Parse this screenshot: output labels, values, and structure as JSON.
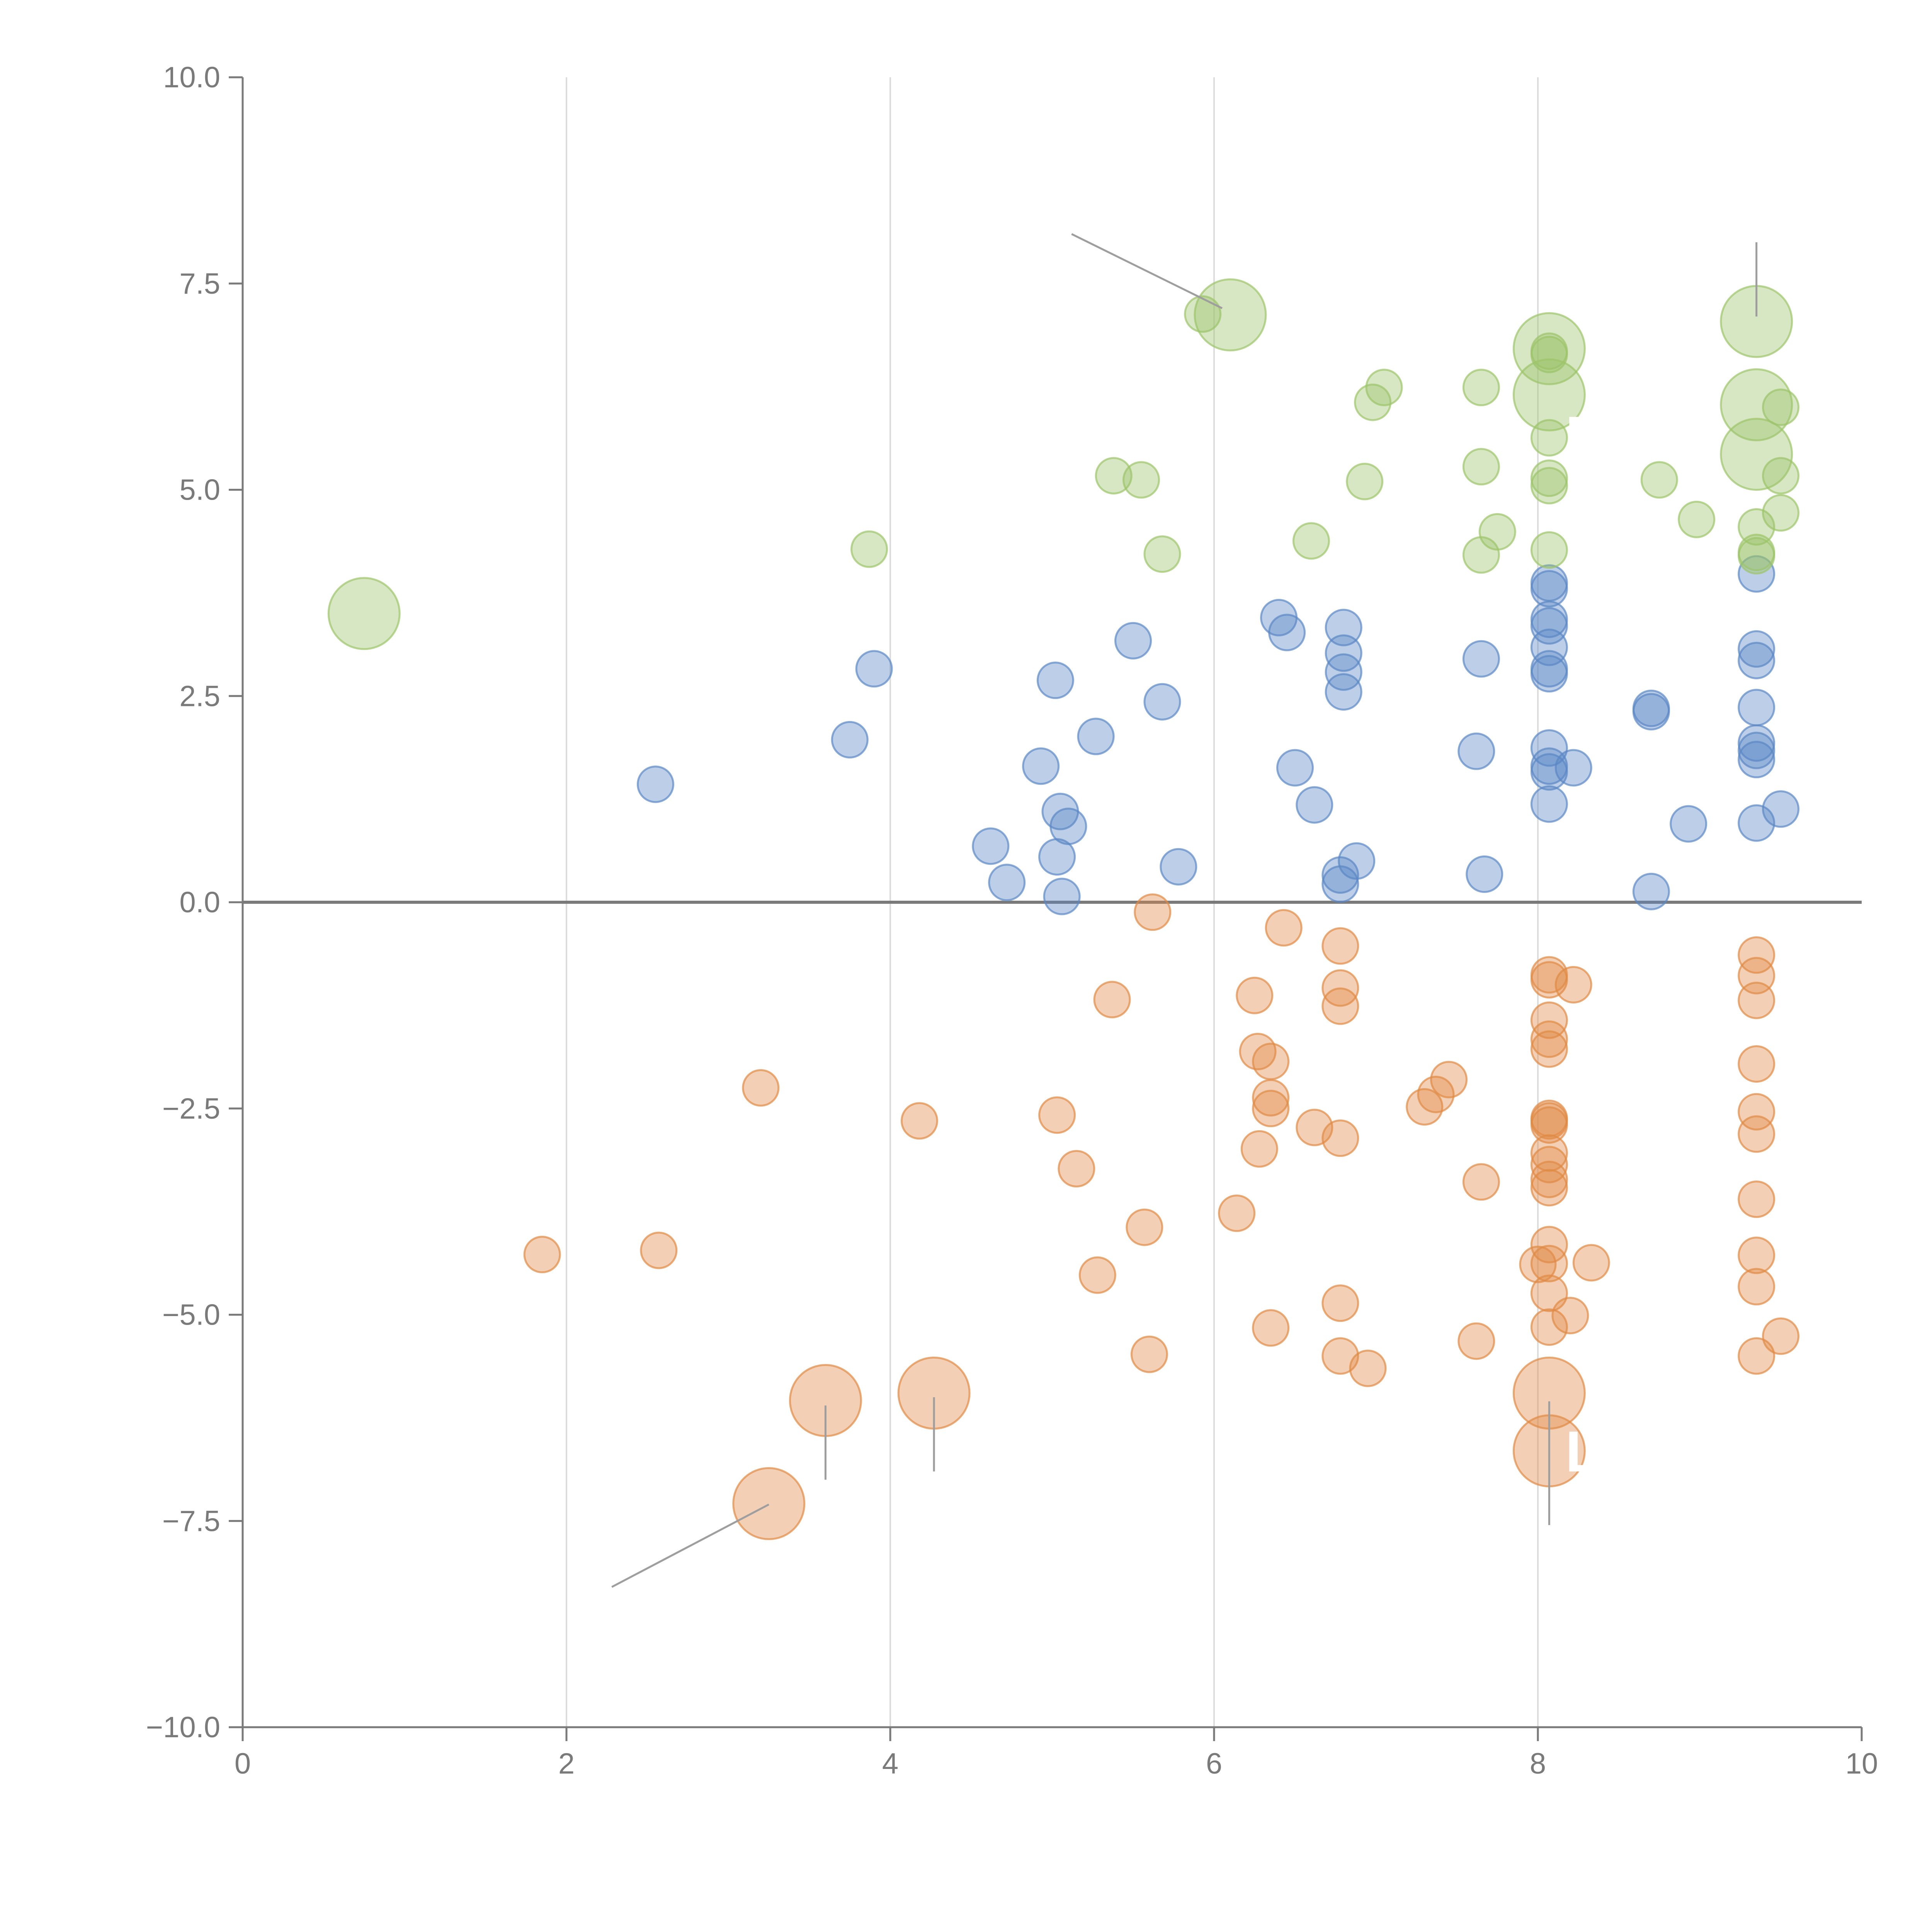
{
  "chart_data": {
    "type": "scatter",
    "title": "",
    "xlabel": "",
    "ylabel": "",
    "xlim": [
      0,
      10
    ],
    "ylim": [
      -10,
      10
    ],
    "x_ticks": [
      0,
      2,
      4,
      6,
      8,
      10
    ],
    "x_tick_labels": [
      "0",
      "2",
      "4",
      "6",
      "8",
      "10"
    ],
    "y_ticks": [
      -10,
      -7.5,
      -5,
      -2.5,
      0,
      2.5,
      5,
      7.5,
      10
    ],
    "y_tick_labels": [
      "−10.0",
      "−7.5",
      "−5.0",
      "−2.5",
      "0.0",
      "2.5",
      "5.0",
      "7.5",
      "10.0"
    ],
    "grid": "vertical",
    "zero_line": 0,
    "colors": {
      "blue": "#5b87c5",
      "orange": "#e08a45",
      "green": "#9cc46a",
      "leader": "#9e9e9e",
      "axis": "#7a7a7a",
      "grid": "#dcdcdc"
    },
    "series": [
      {
        "name": "blue",
        "color": "#5b87c5",
        "points": [
          [
            2.55,
            1.43,
            1
          ],
          [
            3.75,
            1.97,
            1
          ],
          [
            3.9,
            2.83,
            1
          ],
          [
            4.62,
            0.68,
            1
          ],
          [
            4.72,
            0.24,
            1
          ],
          [
            4.93,
            1.65,
            1
          ],
          [
            5.02,
            2.69,
            1
          ],
          [
            5.03,
            0.55,
            1
          ],
          [
            5.05,
            1.1,
            1
          ],
          [
            5.06,
            0.07,
            1
          ],
          [
            5.1,
            0.92,
            1
          ],
          [
            5.27,
            2.01,
            1
          ],
          [
            5.5,
            3.17,
            1
          ],
          [
            5.68,
            2.43,
            1
          ],
          [
            5.78,
            0.43,
            1
          ],
          [
            6.4,
            3.45,
            1
          ],
          [
            6.45,
            3.27,
            1
          ],
          [
            6.5,
            1.63,
            1
          ],
          [
            6.62,
            1.18,
            1
          ],
          [
            6.78,
            0.33,
            1
          ],
          [
            6.78,
            0.22,
            1
          ],
          [
            6.8,
            3.33,
            1
          ],
          [
            6.8,
            3.02,
            1
          ],
          [
            6.8,
            2.79,
            1
          ],
          [
            6.8,
            2.55,
            1
          ],
          [
            6.88,
            0.5,
            1
          ],
          [
            7.62,
            1.83,
            1
          ],
          [
            7.65,
            2.95,
            1
          ],
          [
            7.67,
            0.34,
            1
          ],
          [
            8.07,
            3.87,
            1
          ],
          [
            8.07,
            3.8,
            1
          ],
          [
            8.07,
            3.43,
            1
          ],
          [
            8.07,
            3.35,
            1
          ],
          [
            8.07,
            3.09,
            1
          ],
          [
            8.07,
            2.83,
            1
          ],
          [
            8.07,
            2.77,
            1
          ],
          [
            8.07,
            1.87,
            1
          ],
          [
            8.07,
            1.65,
            1
          ],
          [
            8.07,
            1.58,
            1
          ],
          [
            8.07,
            1.19,
            1
          ],
          [
            8.22,
            1.63,
            1
          ],
          [
            8.7,
            2.35,
            1
          ],
          [
            8.7,
            2.31,
            1
          ],
          [
            8.7,
            0.13,
            1
          ],
          [
            8.93,
            0.95,
            1
          ],
          [
            9.35,
            3.98,
            1
          ],
          [
            9.35,
            3.07,
            1
          ],
          [
            9.35,
            2.93,
            1
          ],
          [
            9.35,
            2.36,
            1
          ],
          [
            9.35,
            1.93,
            1
          ],
          [
            9.35,
            1.84,
            1
          ],
          [
            9.35,
            1.73,
            1
          ],
          [
            9.35,
            0.96,
            1
          ],
          [
            9.5,
            1.13,
            1
          ]
        ]
      },
      {
        "name": "orange",
        "color": "#e08a45",
        "points": [
          [
            1.85,
            -4.27,
            1
          ],
          [
            2.57,
            -4.22,
            1
          ],
          [
            3.2,
            -2.25,
            1
          ],
          [
            4.18,
            -2.65,
            1
          ],
          [
            5.03,
            -2.58,
            1
          ],
          [
            5.15,
            -3.23,
            1
          ],
          [
            5.28,
            -4.52,
            1
          ],
          [
            5.37,
            -1.18,
            1
          ],
          [
            5.57,
            -3.94,
            1
          ],
          [
            5.6,
            -5.48,
            1
          ],
          [
            5.62,
            -0.12,
            1
          ],
          [
            6.14,
            -3.77,
            1
          ],
          [
            6.25,
            -1.13,
            1
          ],
          [
            6.27,
            -1.81,
            1
          ],
          [
            6.28,
            -2.99,
            1
          ],
          [
            6.35,
            -1.93,
            1
          ],
          [
            6.35,
            -2.37,
            1
          ],
          [
            6.35,
            -2.5,
            1
          ],
          [
            6.35,
            -5.16,
            1
          ],
          [
            6.43,
            -0.31,
            1
          ],
          [
            6.62,
            -2.73,
            1
          ],
          [
            6.78,
            -0.53,
            1
          ],
          [
            6.78,
            -1.04,
            1
          ],
          [
            6.78,
            -1.26,
            1
          ],
          [
            6.78,
            -2.86,
            1
          ],
          [
            6.78,
            -4.86,
            1
          ],
          [
            6.78,
            -5.5,
            1
          ],
          [
            6.95,
            -5.65,
            1
          ],
          [
            7.3,
            -2.48,
            1
          ],
          [
            7.37,
            -2.33,
            1
          ],
          [
            7.45,
            -2.15,
            1
          ],
          [
            7.62,
            -5.32,
            1
          ],
          [
            7.65,
            -3.39,
            1
          ],
          [
            8.0,
            -4.39,
            1
          ],
          [
            8.07,
            -0.88,
            1
          ],
          [
            8.07,
            -0.94,
            1
          ],
          [
            8.07,
            -1.43,
            1
          ],
          [
            8.07,
            -1.66,
            1
          ],
          [
            8.07,
            -1.78,
            1
          ],
          [
            8.07,
            -2.62,
            1
          ],
          [
            8.07,
            -2.65,
            1
          ],
          [
            8.07,
            -2.7,
            1
          ],
          [
            8.07,
            -3.04,
            1
          ],
          [
            8.07,
            -3.18,
            1
          ],
          [
            8.07,
            -3.36,
            1
          ],
          [
            8.07,
            -3.46,
            1
          ],
          [
            8.07,
            -4.15,
            1
          ],
          [
            8.07,
            -4.38,
            1
          ],
          [
            8.07,
            -4.74,
            1
          ],
          [
            8.07,
            -5.15,
            1
          ],
          [
            8.2,
            -5.01,
            1
          ],
          [
            8.22,
            -1.0,
            1
          ],
          [
            8.33,
            -4.37,
            1
          ],
          [
            9.35,
            -0.64,
            1
          ],
          [
            9.35,
            -0.89,
            1
          ],
          [
            9.35,
            -1.19,
            1
          ],
          [
            9.35,
            -1.96,
            1
          ],
          [
            9.35,
            -2.54,
            1
          ],
          [
            9.35,
            -2.81,
            1
          ],
          [
            9.35,
            -3.6,
            1
          ],
          [
            9.35,
            -4.28,
            1
          ],
          [
            9.35,
            -4.66,
            1
          ],
          [
            9.35,
            -5.5,
            1
          ],
          [
            9.5,
            -5.26,
            1
          ],
          [
            3.6,
            -6.04,
            2
          ],
          [
            4.27,
            -5.95,
            2
          ],
          [
            3.25,
            -7.29,
            2
          ],
          [
            8.07,
            -5.95,
            2
          ],
          [
            8.07,
            -6.65,
            2
          ]
        ]
      },
      {
        "name": "green",
        "color": "#9cc46a",
        "points": [
          [
            3.87,
            4.28,
            1
          ],
          [
            5.38,
            5.17,
            1
          ],
          [
            5.55,
            5.12,
            1
          ],
          [
            5.68,
            4.22,
            1
          ],
          [
            5.93,
            7.13,
            1
          ],
          [
            6.6,
            4.38,
            1
          ],
          [
            6.98,
            6.06,
            1
          ],
          [
            7.05,
            6.24,
            1
          ],
          [
            6.93,
            5.1,
            1
          ],
          [
            7.65,
            6.24,
            1
          ],
          [
            7.65,
            5.28,
            1
          ],
          [
            7.65,
            4.21,
            1
          ],
          [
            7.75,
            4.49,
            1
          ],
          [
            8.07,
            6.68,
            1
          ],
          [
            8.07,
            6.64,
            1
          ],
          [
            8.07,
            5.63,
            1
          ],
          [
            8.07,
            5.14,
            1
          ],
          [
            8.07,
            5.05,
            1
          ],
          [
            8.07,
            4.27,
            1
          ],
          [
            8.75,
            5.12,
            1
          ],
          [
            8.98,
            4.64,
            1
          ],
          [
            9.35,
            4.55,
            1
          ],
          [
            9.35,
            4.24,
            1
          ],
          [
            9.35,
            4.2,
            1
          ],
          [
            9.5,
            6.0,
            1
          ],
          [
            9.5,
            5.17,
            1
          ],
          [
            9.5,
            4.72,
            1
          ],
          [
            0.75,
            3.5,
            2
          ],
          [
            6.1,
            7.12,
            2
          ],
          [
            8.07,
            6.71,
            2
          ],
          [
            8.07,
            6.15,
            2
          ],
          [
            9.35,
            7.04,
            2
          ],
          [
            9.35,
            6.03,
            2
          ],
          [
            9.35,
            5.43,
            2
          ]
        ]
      }
    ],
    "annotations": [
      {
        "from": [
          5.12,
          8.1
        ],
        "to": [
          6.05,
          7.2
        ]
      },
      {
        "from": [
          9.35,
          8.0
        ],
        "to": [
          9.35,
          7.1
        ]
      },
      {
        "from": [
          3.6,
          -6.1
        ],
        "to": [
          3.6,
          -7.0
        ]
      },
      {
        "from": [
          4.27,
          -6.0
        ],
        "to": [
          4.27,
          -6.9
        ]
      },
      {
        "from": [
          3.25,
          -7.3
        ],
        "to": [
          2.28,
          -8.3
        ]
      },
      {
        "from": [
          8.07,
          -6.05
        ],
        "to": [
          8.07,
          -7.55
        ]
      }
    ],
    "labels": [
      {
        "text": "M",
        "x": 8.17,
        "y": 5.4
      },
      {
        "text": "L",
        "x": 8.17,
        "y": -6.9
      }
    ]
  }
}
